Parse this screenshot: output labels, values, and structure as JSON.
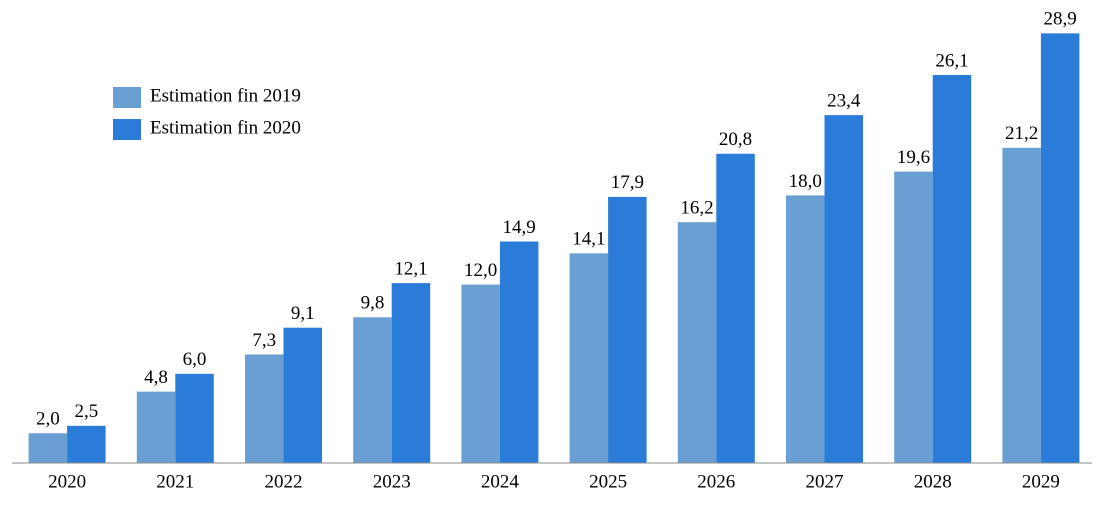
{
  "chart_data": {
    "type": "bar",
    "categories": [
      "2020",
      "2021",
      "2022",
      "2023",
      "2024",
      "2025",
      "2026",
      "2027",
      "2028",
      "2029"
    ],
    "series": [
      {
        "name": "Estimation fin 2019",
        "color": "#6a9fd4",
        "values": [
          2.0,
          4.8,
          7.3,
          9.8,
          12.0,
          14.1,
          16.2,
          18.0,
          19.6,
          21.2
        ],
        "value_labels": [
          "2,0",
          "4,8",
          "7,3",
          "9,8",
          "12,0",
          "14,1",
          "16,2",
          "18,0",
          "19,6",
          "21,2"
        ]
      },
      {
        "name": "Estimation fin 2020",
        "color": "#2b7cd9",
        "values": [
          2.5,
          6.0,
          9.1,
          12.1,
          14.9,
          17.9,
          20.8,
          23.4,
          26.1,
          28.9
        ],
        "value_labels": [
          "2,5",
          "6,0",
          "9,1",
          "12,1",
          "14,9",
          "17,9",
          "20,8",
          "23,4",
          "26,1",
          "28,9"
        ]
      }
    ],
    "ylim": [
      0,
      30
    ],
    "legend": "upper-left"
  }
}
